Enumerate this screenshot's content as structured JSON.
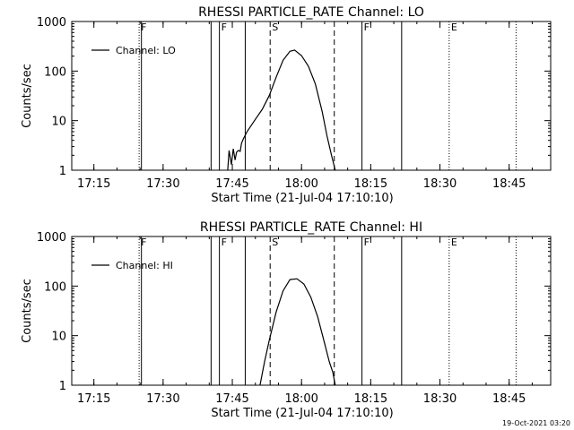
{
  "footer": {
    "timestamp": "19-Oct-2021 03:20"
  },
  "chart_data": [
    {
      "type": "line",
      "title": "RHESSI PARTICLE_RATE Channel: LO",
      "xlabel": "Start Time (21-Jul-04 17:10:10)",
      "ylabel": "Counts/sec",
      "yscale": "log",
      "ylim": [
        1,
        1000
      ],
      "xlim_minutes": [
        17.17,
        18.9
      ],
      "xticks": [
        "17:15",
        "17:30",
        "17:45",
        "18:00",
        "18:15",
        "18:30",
        "18:45"
      ],
      "yticks": [
        "1",
        "10",
        "100",
        "1000"
      ],
      "legend": {
        "position": "top-left",
        "entries": [
          "Channel: LO"
        ]
      },
      "series": [
        {
          "name": "Channel: LO",
          "x": [
            "17:44.0",
            "17:44.3",
            "17:44.8",
            "17:45.2",
            "17:45.6",
            "17:45.9",
            "17:46.3",
            "17:46.7",
            "17:47.0",
            "17:47.4",
            "17:48.2",
            "17:49.8",
            "17:51.5",
            "17:53.0",
            "17:54.5",
            "17:56.0",
            "17:57.5",
            "17:58.5",
            "18:00.0",
            "18:01.5",
            "18:03.0",
            "18:04.5",
            "18:05.5",
            "18:06.5",
            "18:07.3"
          ],
          "values": [
            1.0,
            2.5,
            1.3,
            2.7,
            1.6,
            2.3,
            2.5,
            2.4,
            3.5,
            4.3,
            6,
            10,
            17,
            32,
            75,
            165,
            250,
            265,
            205,
            125,
            55,
            15,
            5,
            2,
            1
          ]
        }
      ],
      "events": [
        {
          "label": "F",
          "time": "17:24.8",
          "style": "dotted"
        },
        {
          "label": "",
          "time": "17:25.3",
          "style": "solid"
        },
        {
          "label": "",
          "time": "17:40.4",
          "style": "solid"
        },
        {
          "label": "F",
          "time": "17:42.2",
          "style": "solid"
        },
        {
          "label": "",
          "time": "17:47.8",
          "style": "solid"
        },
        {
          "label": "S",
          "time": "17:53.2",
          "style": "dashed"
        },
        {
          "label": "",
          "time": "18:07.1",
          "style": "dashed"
        },
        {
          "label": "F",
          "time": "18:13.1",
          "style": "solid"
        },
        {
          "label": "",
          "time": "18:21.7",
          "style": "solid"
        },
        {
          "label": "E",
          "time": "18:32.0",
          "style": "dotted"
        },
        {
          "label": "",
          "time": "18:46.5",
          "style": "dotted"
        }
      ]
    },
    {
      "type": "line",
      "title": "RHESSI PARTICLE_RATE Channel: HI",
      "xlabel": "Start Time (21-Jul-04 17:10:10)",
      "ylabel": "Counts/sec",
      "yscale": "log",
      "ylim": [
        1,
        1000
      ],
      "xlim_minutes": [
        17.17,
        18.9
      ],
      "xticks": [
        "17:15",
        "17:30",
        "17:45",
        "18:00",
        "18:15",
        "18:30",
        "18:45"
      ],
      "yticks": [
        "1",
        "10",
        "100",
        "1000"
      ],
      "legend": {
        "position": "top-left",
        "entries": [
          "Channel: HI"
        ]
      },
      "series": [
        {
          "name": "Channel: HI",
          "x": [
            "17:51.0",
            "17:52.0",
            "17:53.0",
            "17:54.5",
            "17:56.0",
            "17:57.5",
            "17:59.0",
            "18:00.5",
            "18:02.0",
            "18:03.5",
            "18:05.0",
            "18:06.0",
            "18:06.8",
            "18:07.3"
          ],
          "values": [
            1.0,
            3,
            8,
            30,
            80,
            135,
            140,
            110,
            60,
            24,
            7,
            3,
            1.8,
            1.0
          ]
        }
      ],
      "events": [
        {
          "label": "F",
          "time": "17:24.8",
          "style": "dotted"
        },
        {
          "label": "",
          "time": "17:25.3",
          "style": "solid"
        },
        {
          "label": "",
          "time": "17:40.4",
          "style": "solid"
        },
        {
          "label": "F",
          "time": "17:42.2",
          "style": "solid"
        },
        {
          "label": "",
          "time": "17:47.8",
          "style": "solid"
        },
        {
          "label": "S",
          "time": "17:53.2",
          "style": "dashed"
        },
        {
          "label": "",
          "time": "18:07.1",
          "style": "dashed"
        },
        {
          "label": "F",
          "time": "18:13.1",
          "style": "solid"
        },
        {
          "label": "",
          "time": "18:21.7",
          "style": "solid"
        },
        {
          "label": "E",
          "time": "18:32.0",
          "style": "dotted"
        },
        {
          "label": "",
          "time": "18:46.5",
          "style": "dotted"
        }
      ]
    }
  ]
}
